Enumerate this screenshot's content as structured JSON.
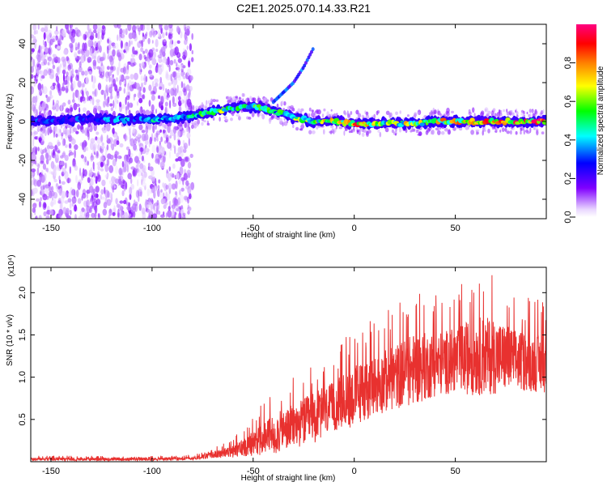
{
  "title": "C2E1.2025.070.14.33.R21",
  "chart_data": [
    {
      "type": "heatmap",
      "xlabel": "Height of straight line (km)",
      "ylabel": "Frequency (Hz)",
      "xlim": [
        -160,
        95
      ],
      "ylim": [
        -50,
        50
      ],
      "xticks": [
        -150,
        -100,
        -50,
        0,
        50
      ],
      "yticks": [
        -40,
        -20,
        0,
        20,
        40
      ],
      "colorbar": {
        "label": "Normalized spectral amplitude",
        "range": [
          0,
          1
        ],
        "ticks": [
          0.0,
          0.2,
          0.4,
          0.6,
          0.8
        ],
        "colormap": [
          "#ffffff",
          "#7f00ff",
          "#0000ff",
          "#00ffff",
          "#00ff00",
          "#ffff00",
          "#ff8000",
          "#ff0000",
          "#ff0080"
        ]
      },
      "ridge": {
        "x": [
          -160,
          -140,
          -120,
          -100,
          -85,
          -75,
          -65,
          -55,
          -45,
          -38,
          -30,
          -20,
          -10,
          0,
          10,
          20,
          30,
          40,
          50,
          60,
          70,
          80,
          95
        ],
        "y": [
          0,
          1,
          1,
          1,
          2,
          4,
          6,
          8,
          7,
          5,
          2,
          0,
          0,
          -1,
          -1,
          -1,
          -1,
          0,
          0,
          0,
          0,
          0,
          0
        ],
        "amplitude": [
          0.3,
          0.3,
          0.35,
          0.4,
          0.45,
          0.5,
          0.55,
          0.5,
          0.5,
          0.5,
          0.55,
          0.6,
          0.65,
          0.8,
          0.6,
          0.6,
          0.65,
          0.65,
          0.7,
          0.75,
          0.75,
          0.8,
          0.8
        ]
      },
      "branch": {
        "x": [
          -40,
          -35,
          -30,
          -25,
          -20
        ],
        "y": [
          10,
          15,
          20,
          28,
          38
        ]
      },
      "grid": false,
      "legend": "none"
    },
    {
      "type": "line",
      "xlabel": "Height of straight line (km)",
      "ylabel": "SNR (10 * v/v)",
      "y_multiplier": "(x10⁴)",
      "xlim": [
        -160,
        95
      ],
      "ylim": [
        0,
        2.3
      ],
      "xticks": [
        -150,
        -100,
        -50,
        0,
        50
      ],
      "yticks": [
        0.5,
        1.0,
        1.5,
        2.0
      ],
      "color": "#e8312f",
      "envelope": {
        "x": [
          -160,
          -100,
          -80,
          -70,
          -60,
          -50,
          -40,
          -30,
          -20,
          -10,
          0,
          10,
          20,
          30,
          40,
          50,
          60,
          70,
          80,
          95
        ],
        "mean": [
          0.03,
          0.03,
          0.04,
          0.08,
          0.12,
          0.22,
          0.32,
          0.42,
          0.52,
          0.65,
          0.78,
          0.9,
          1.0,
          1.1,
          1.15,
          1.2,
          1.25,
          1.25,
          1.2,
          1.15
        ],
        "max": [
          0.07,
          0.07,
          0.08,
          0.16,
          0.28,
          0.55,
          0.85,
          1.0,
          1.2,
          1.3,
          1.6,
          1.7,
          1.85,
          2.05,
          2.0,
          2.05,
          2.3,
          2.25,
          2.0,
          1.9
        ]
      },
      "grid": false,
      "legend": "none"
    }
  ]
}
